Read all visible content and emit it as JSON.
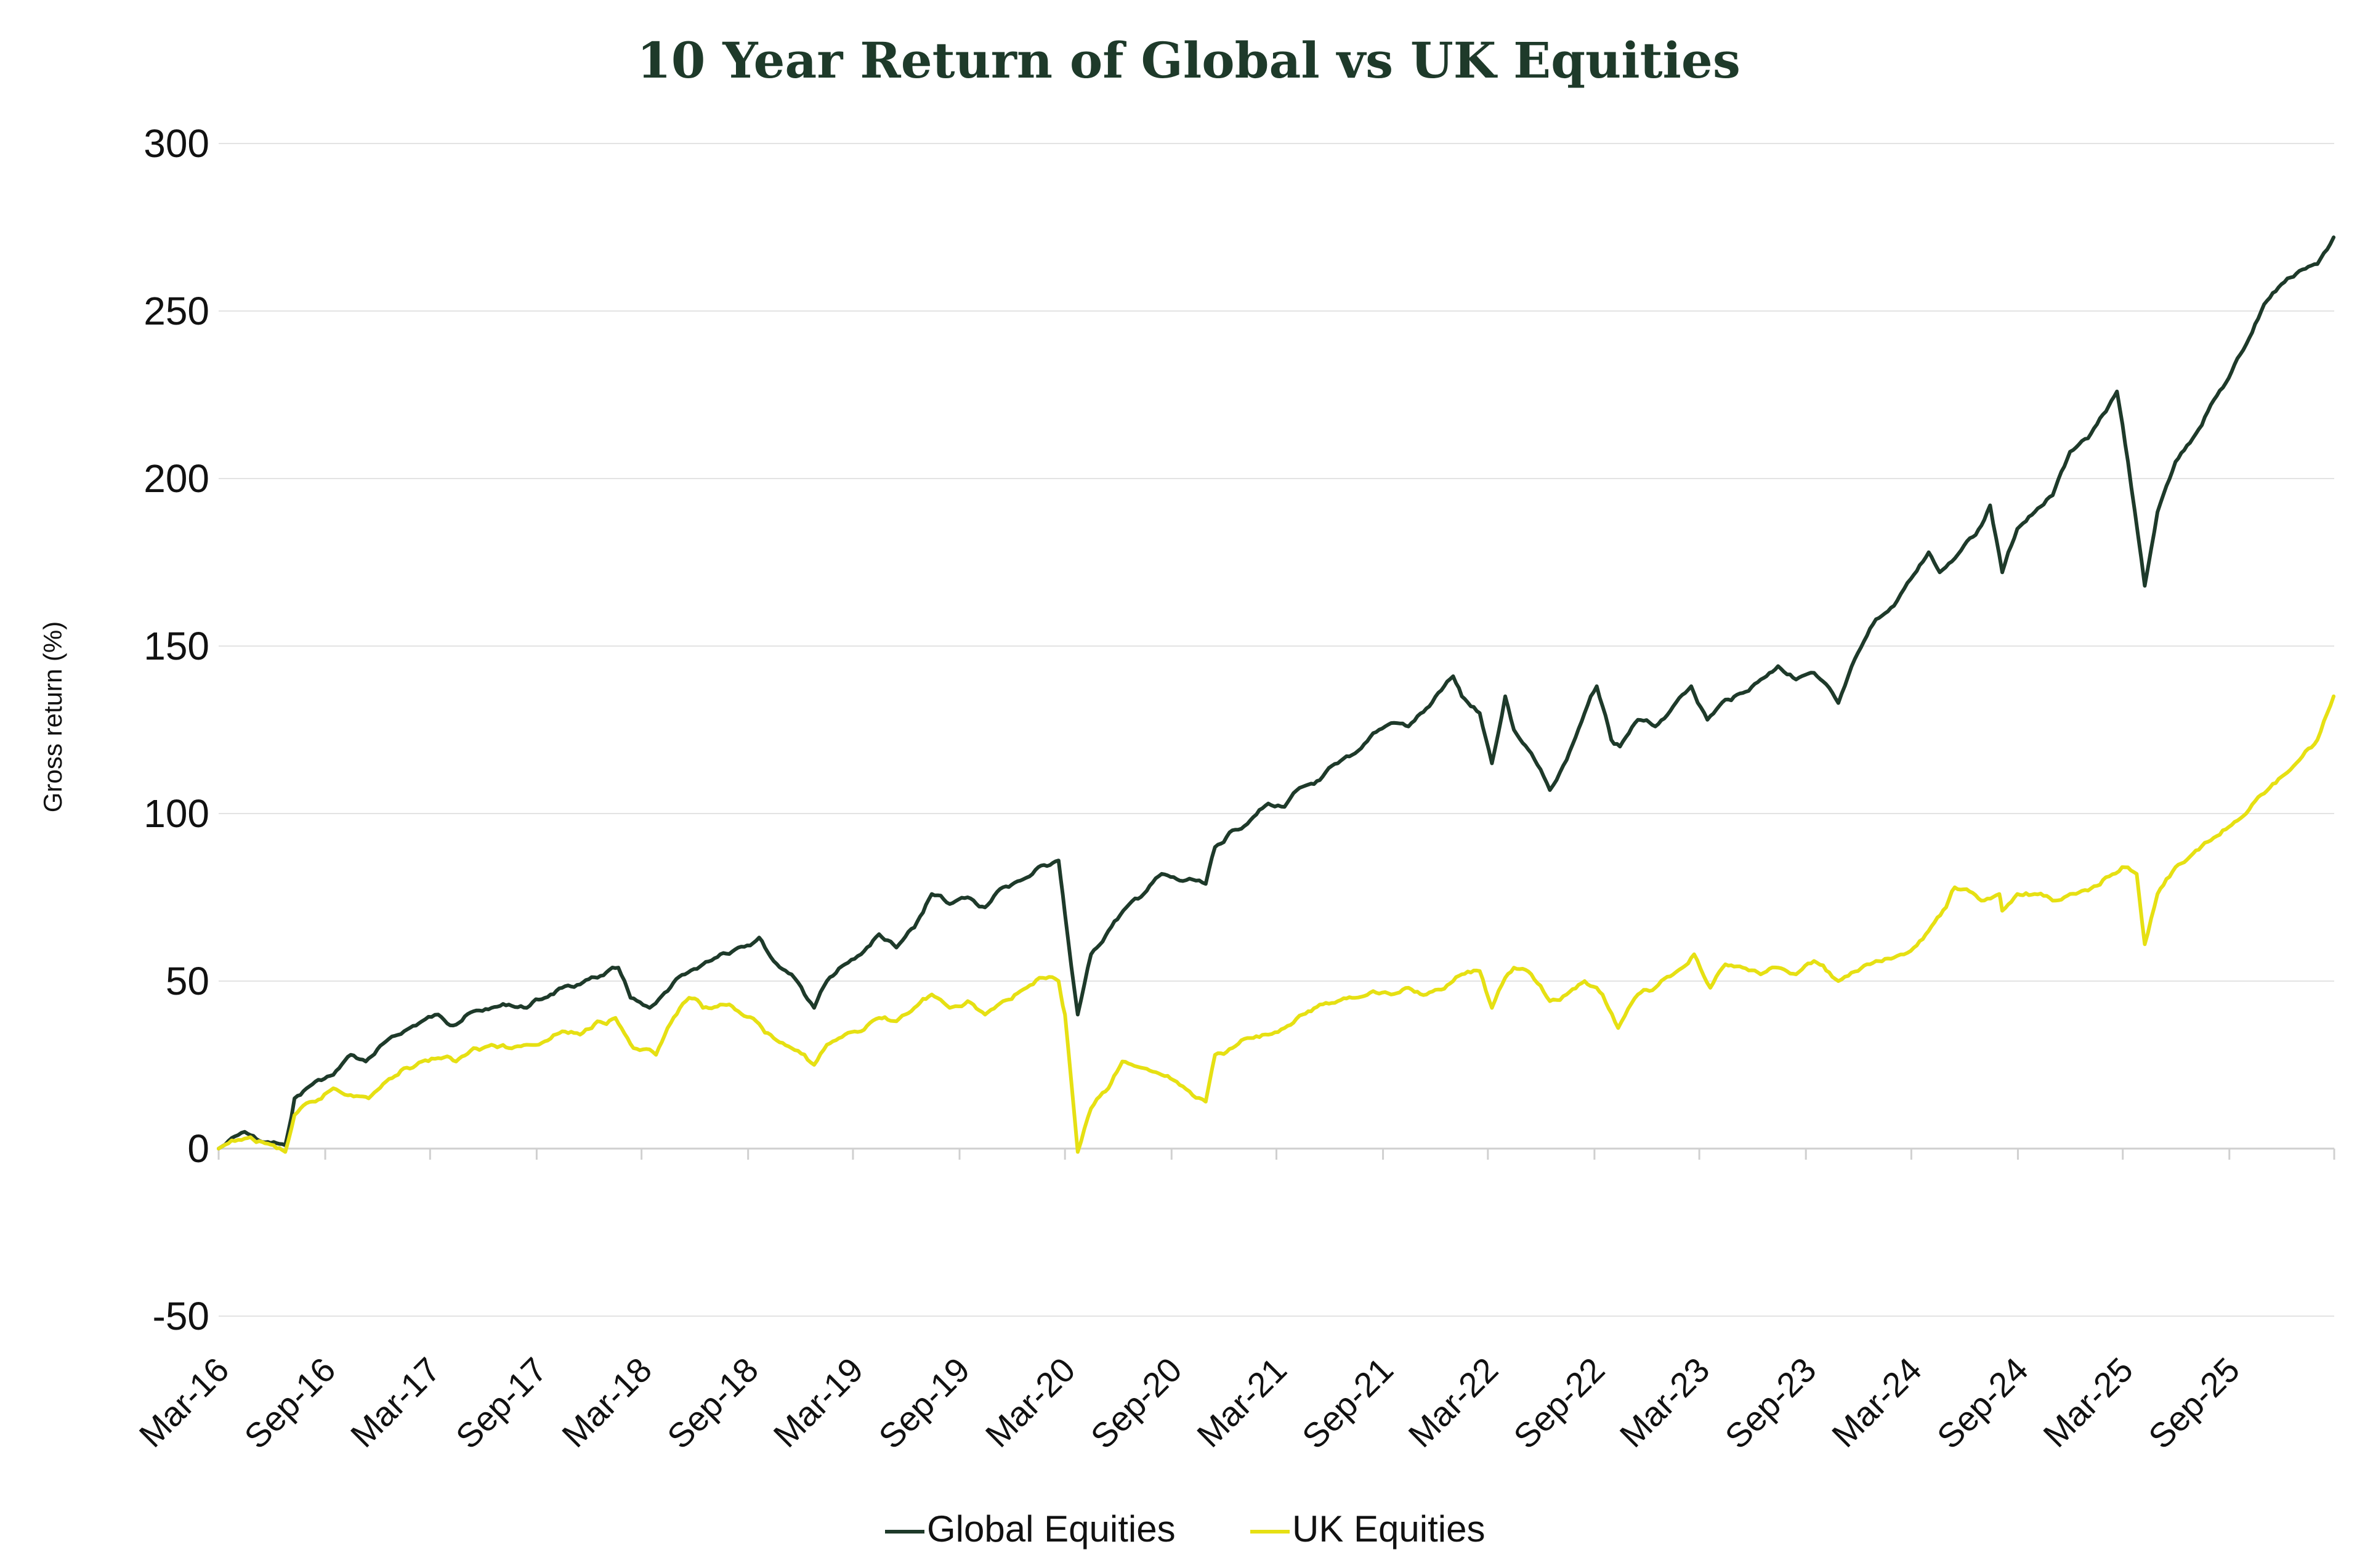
{
  "chart_data": {
    "type": "line",
    "title": "10 Year Return of Global vs UK Equities",
    "xlabel": "",
    "ylabel": "Gross return (%)",
    "ylim": [
      -50,
      300
    ],
    "yticks": [
      300,
      250,
      200,
      150,
      100,
      50,
      0,
      -50
    ],
    "xlim": [
      "2016-03",
      "2026-03"
    ],
    "x_tick_labels": [
      "Mar-16",
      "Sep-16",
      "Mar-17",
      "Sep-17",
      "Mar-18",
      "Sep-18",
      "Mar-19",
      "Sep-19",
      "Mar-20",
      "Sep-20",
      "Mar-21",
      "Sep-21",
      "Mar-22",
      "Sep-22",
      "Mar-23",
      "Sep-23",
      "Mar-24",
      "Sep-24",
      "Mar-25",
      "Sep-25"
    ],
    "grid": true,
    "legend_position": "bottom",
    "series": [
      {
        "name": "Global Equities",
        "color": "#1e3a2a",
        "points": [
          [
            "2016-03-01",
            0
          ],
          [
            "2016-04-15",
            5
          ],
          [
            "2016-05-15",
            2
          ],
          [
            "2016-06-24",
            1
          ],
          [
            "2016-07-10",
            15
          ],
          [
            "2016-08-15",
            20
          ],
          [
            "2016-09-15",
            22
          ],
          [
            "2016-10-15",
            28
          ],
          [
            "2016-11-10",
            26
          ],
          [
            "2016-12-15",
            32
          ],
          [
            "2017-01-15",
            35
          ],
          [
            "2017-02-15",
            38
          ],
          [
            "2017-03-15",
            40
          ],
          [
            "2017-04-15",
            37
          ],
          [
            "2017-05-15",
            41
          ],
          [
            "2017-06-15",
            42
          ],
          [
            "2017-07-15",
            43
          ],
          [
            "2017-08-15",
            42
          ],
          [
            "2017-09-15",
            45
          ],
          [
            "2017-10-15",
            48
          ],
          [
            "2017-11-15",
            49
          ],
          [
            "2017-12-15",
            51
          ],
          [
            "2018-01-20",
            54
          ],
          [
            "2018-02-10",
            45
          ],
          [
            "2018-03-15",
            42
          ],
          [
            "2018-04-15",
            47
          ],
          [
            "2018-05-15",
            52
          ],
          [
            "2018-06-15",
            55
          ],
          [
            "2018-07-15",
            58
          ],
          [
            "2018-08-15",
            60
          ],
          [
            "2018-09-20",
            63
          ],
          [
            "2018-10-15",
            56
          ],
          [
            "2018-11-15",
            52
          ],
          [
            "2018-12-24",
            42
          ],
          [
            "2019-01-15",
            50
          ],
          [
            "2019-02-15",
            55
          ],
          [
            "2019-03-15",
            58
          ],
          [
            "2019-04-15",
            64
          ],
          [
            "2019-05-15",
            60
          ],
          [
            "2019-06-15",
            66
          ],
          [
            "2019-07-15",
            76
          ],
          [
            "2019-08-15",
            73
          ],
          [
            "2019-09-15",
            75
          ],
          [
            "2019-10-15",
            72
          ],
          [
            "2019-11-15",
            78
          ],
          [
            "2019-12-15",
            80
          ],
          [
            "2020-01-15",
            84
          ],
          [
            "2020-02-19",
            86
          ],
          [
            "2020-03-01",
            70
          ],
          [
            "2020-03-23",
            40
          ],
          [
            "2020-04-15",
            58
          ],
          [
            "2020-05-15",
            65
          ],
          [
            "2020-06-15",
            72
          ],
          [
            "2020-07-15",
            76
          ],
          [
            "2020-08-15",
            82
          ],
          [
            "2020-09-15",
            80
          ],
          [
            "2020-10-30",
            79
          ],
          [
            "2020-11-15",
            90
          ],
          [
            "2020-12-15",
            95
          ],
          [
            "2021-01-15",
            98
          ],
          [
            "2021-02-15",
            103
          ],
          [
            "2021-03-15",
            102
          ],
          [
            "2021-04-15",
            108
          ],
          [
            "2021-05-15",
            110
          ],
          [
            "2021-06-15",
            115
          ],
          [
            "2021-07-15",
            118
          ],
          [
            "2021-08-15",
            124
          ],
          [
            "2021-09-15",
            127
          ],
          [
            "2021-10-15",
            126
          ],
          [
            "2021-11-20",
            132
          ],
          [
            "2021-12-31",
            141
          ],
          [
            "2022-01-15",
            135
          ],
          [
            "2022-02-15",
            130
          ],
          [
            "2022-03-08",
            115
          ],
          [
            "2022-03-31",
            135
          ],
          [
            "2022-04-15",
            125
          ],
          [
            "2022-05-15",
            118
          ],
          [
            "2022-06-16",
            107
          ],
          [
            "2022-07-15",
            116
          ],
          [
            "2022-08-15",
            130
          ],
          [
            "2022-09-05",
            138
          ],
          [
            "2022-09-30",
            122
          ],
          [
            "2022-10-15",
            120
          ],
          [
            "2022-11-15",
            128
          ],
          [
            "2022-12-15",
            126
          ],
          [
            "2023-01-15",
            132
          ],
          [
            "2023-02-15",
            138
          ],
          [
            "2023-03-15",
            128
          ],
          [
            "2023-04-15",
            134
          ],
          [
            "2023-05-15",
            136
          ],
          [
            "2023-06-15",
            140
          ],
          [
            "2023-07-15",
            144
          ],
          [
            "2023-08-15",
            140
          ],
          [
            "2023-09-15",
            142
          ],
          [
            "2023-10-27",
            133
          ],
          [
            "2023-11-30",
            148
          ],
          [
            "2023-12-31",
            158
          ],
          [
            "2024-01-31",
            162
          ],
          [
            "2024-02-29",
            170
          ],
          [
            "2024-03-31",
            178
          ],
          [
            "2024-04-19",
            172
          ],
          [
            "2024-05-31",
            180
          ],
          [
            "2024-06-30",
            186
          ],
          [
            "2024-07-15",
            192
          ],
          [
            "2024-08-05",
            172
          ],
          [
            "2024-08-31",
            185
          ],
          [
            "2024-09-30",
            190
          ],
          [
            "2024-10-31",
            195
          ],
          [
            "2024-11-30",
            208
          ],
          [
            "2024-12-31",
            212
          ],
          [
            "2025-01-31",
            220
          ],
          [
            "2025-02-19",
            226
          ],
          [
            "2025-03-10",
            205
          ],
          [
            "2025-04-08",
            168
          ],
          [
            "2025-04-30",
            190
          ],
          [
            "2025-05-31",
            205
          ],
          [
            "2025-06-30",
            212
          ],
          [
            "2025-07-31",
            222
          ],
          [
            "2025-08-31",
            230
          ],
          [
            "2025-09-30",
            240
          ],
          [
            "2025-10-31",
            252
          ],
          [
            "2025-11-30",
            258
          ],
          [
            "2025-12-31",
            262
          ],
          [
            "2026-01-31",
            264
          ],
          [
            "2026-02-28",
            272
          ]
        ]
      },
      {
        "name": "UK Equities",
        "color": "#e6e013",
        "points": [
          [
            "2016-03-01",
            0
          ],
          [
            "2016-04-15",
            3
          ],
          [
            "2016-05-15",
            2
          ],
          [
            "2016-06-24",
            -1
          ],
          [
            "2016-07-10",
            10
          ],
          [
            "2016-08-15",
            14
          ],
          [
            "2016-09-15",
            18
          ],
          [
            "2016-10-15",
            16
          ],
          [
            "2016-11-15",
            15
          ],
          [
            "2016-12-15",
            20
          ],
          [
            "2017-01-15",
            24
          ],
          [
            "2017-02-15",
            26
          ],
          [
            "2017-03-15",
            27
          ],
          [
            "2017-04-15",
            26
          ],
          [
            "2017-05-15",
            30
          ],
          [
            "2017-06-15",
            31
          ],
          [
            "2017-07-15",
            30
          ],
          [
            "2017-08-15",
            31
          ],
          [
            "2017-09-15",
            32
          ],
          [
            "2017-10-15",
            35
          ],
          [
            "2017-11-15",
            34
          ],
          [
            "2017-12-15",
            38
          ],
          [
            "2018-01-15",
            39
          ],
          [
            "2018-02-15",
            30
          ],
          [
            "2018-03-26",
            28
          ],
          [
            "2018-04-15",
            36
          ],
          [
            "2018-05-22",
            45
          ],
          [
            "2018-06-15",
            42
          ],
          [
            "2018-07-15",
            43
          ],
          [
            "2018-08-15",
            41
          ],
          [
            "2018-09-15",
            38
          ],
          [
            "2018-10-15",
            33
          ],
          [
            "2018-11-15",
            30
          ],
          [
            "2018-12-24",
            25
          ],
          [
            "2019-01-15",
            31
          ],
          [
            "2019-02-15",
            34
          ],
          [
            "2019-03-15",
            35
          ],
          [
            "2019-04-15",
            39
          ],
          [
            "2019-05-15",
            38
          ],
          [
            "2019-06-15",
            42
          ],
          [
            "2019-07-15",
            46
          ],
          [
            "2019-08-15",
            42
          ],
          [
            "2019-09-15",
            44
          ],
          [
            "2019-10-15",
            40
          ],
          [
            "2019-11-15",
            44
          ],
          [
            "2019-12-15",
            47
          ],
          [
            "2020-01-17",
            51
          ],
          [
            "2020-02-19",
            50
          ],
          [
            "2020-03-01",
            40
          ],
          [
            "2020-03-23",
            -1
          ],
          [
            "2020-04-15",
            12
          ],
          [
            "2020-05-15",
            18
          ],
          [
            "2020-06-08",
            26
          ],
          [
            "2020-07-15",
            24
          ],
          [
            "2020-08-15",
            22
          ],
          [
            "2020-09-15",
            19
          ],
          [
            "2020-10-30",
            14
          ],
          [
            "2020-11-15",
            28
          ],
          [
            "2020-12-15",
            30
          ],
          [
            "2021-01-15",
            33
          ],
          [
            "2021-02-15",
            34
          ],
          [
            "2021-03-15",
            36
          ],
          [
            "2021-04-15",
            40
          ],
          [
            "2021-05-15",
            43
          ],
          [
            "2021-06-15",
            44
          ],
          [
            "2021-07-15",
            45
          ],
          [
            "2021-08-15",
            47
          ],
          [
            "2021-09-15",
            46
          ],
          [
            "2021-10-15",
            48
          ],
          [
            "2021-11-15",
            46
          ],
          [
            "2021-12-31",
            50
          ],
          [
            "2022-01-15",
            52
          ],
          [
            "2022-02-15",
            53
          ],
          [
            "2022-03-08",
            42
          ],
          [
            "2022-03-31",
            51
          ],
          [
            "2022-04-15",
            54
          ],
          [
            "2022-05-15",
            52
          ],
          [
            "2022-06-16",
            44
          ],
          [
            "2022-07-15",
            46
          ],
          [
            "2022-08-15",
            50
          ],
          [
            "2022-09-15",
            46
          ],
          [
            "2022-10-12",
            36
          ],
          [
            "2022-11-15",
            46
          ],
          [
            "2022-12-15",
            48
          ],
          [
            "2023-01-15",
            52
          ],
          [
            "2023-02-20",
            58
          ],
          [
            "2023-03-20",
            48
          ],
          [
            "2023-04-15",
            55
          ],
          [
            "2023-05-15",
            54
          ],
          [
            "2023-06-15",
            52
          ],
          [
            "2023-07-15",
            54
          ],
          [
            "2023-08-15",
            52
          ],
          [
            "2023-09-15",
            56
          ],
          [
            "2023-10-27",
            50
          ],
          [
            "2023-11-30",
            53
          ],
          [
            "2023-12-31",
            56
          ],
          [
            "2024-01-31",
            57
          ],
          [
            "2024-02-29",
            59
          ],
          [
            "2024-03-31",
            65
          ],
          [
            "2024-04-30",
            72
          ],
          [
            "2024-05-15",
            78
          ],
          [
            "2024-06-30",
            74
          ],
          [
            "2024-07-31",
            76
          ],
          [
            "2024-08-05",
            71
          ],
          [
            "2024-08-31",
            76
          ],
          [
            "2024-09-30",
            76
          ],
          [
            "2024-10-31",
            74
          ],
          [
            "2024-11-30",
            76
          ],
          [
            "2024-12-31",
            77
          ],
          [
            "2025-01-31",
            81
          ],
          [
            "2025-02-28",
            84
          ],
          [
            "2025-03-25",
            82
          ],
          [
            "2025-04-08",
            61
          ],
          [
            "2025-04-30",
            76
          ],
          [
            "2025-05-31",
            84
          ],
          [
            "2025-06-30",
            88
          ],
          [
            "2025-07-31",
            92
          ],
          [
            "2025-08-31",
            96
          ],
          [
            "2025-09-30",
            100
          ],
          [
            "2025-10-31",
            106
          ],
          [
            "2025-11-30",
            111
          ],
          [
            "2025-12-31",
            116
          ],
          [
            "2026-01-31",
            122
          ],
          [
            "2026-02-28",
            135
          ]
        ]
      }
    ]
  }
}
